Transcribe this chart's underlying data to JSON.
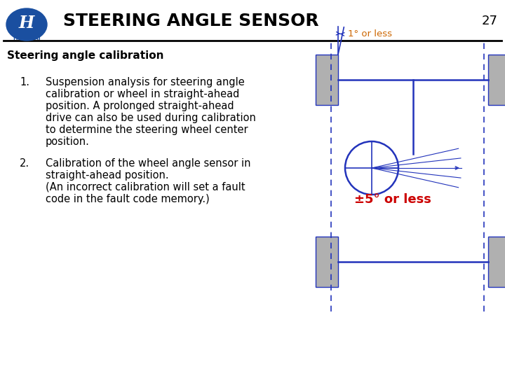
{
  "title": "STEERING ANGLE SENSOR",
  "page_num": "27",
  "section_title": "Steering angle calibration",
  "item1_lines": [
    "Suspension analysis for steering angle",
    "calibration or wheel in straight-ahead",
    "position. A prolonged straight-ahead",
    "drive can also be used during calibration",
    "to determine the steering wheel center",
    "position."
  ],
  "item2_lines": [
    "Calibration of the wheel angle sensor in",
    "straight-ahead position.",
    "(An incorrect calibration will set a fault",
    "code in the fault code memory.)"
  ],
  "label_1deg": "1° or less",
  "label_5deg": "±5° or less",
  "bg_color": "#ffffff",
  "diagram_line_color": "#2233bb",
  "wheel_color": "#b0b0b0",
  "orange_color": "#cc6600",
  "red_color": "#cc0000"
}
